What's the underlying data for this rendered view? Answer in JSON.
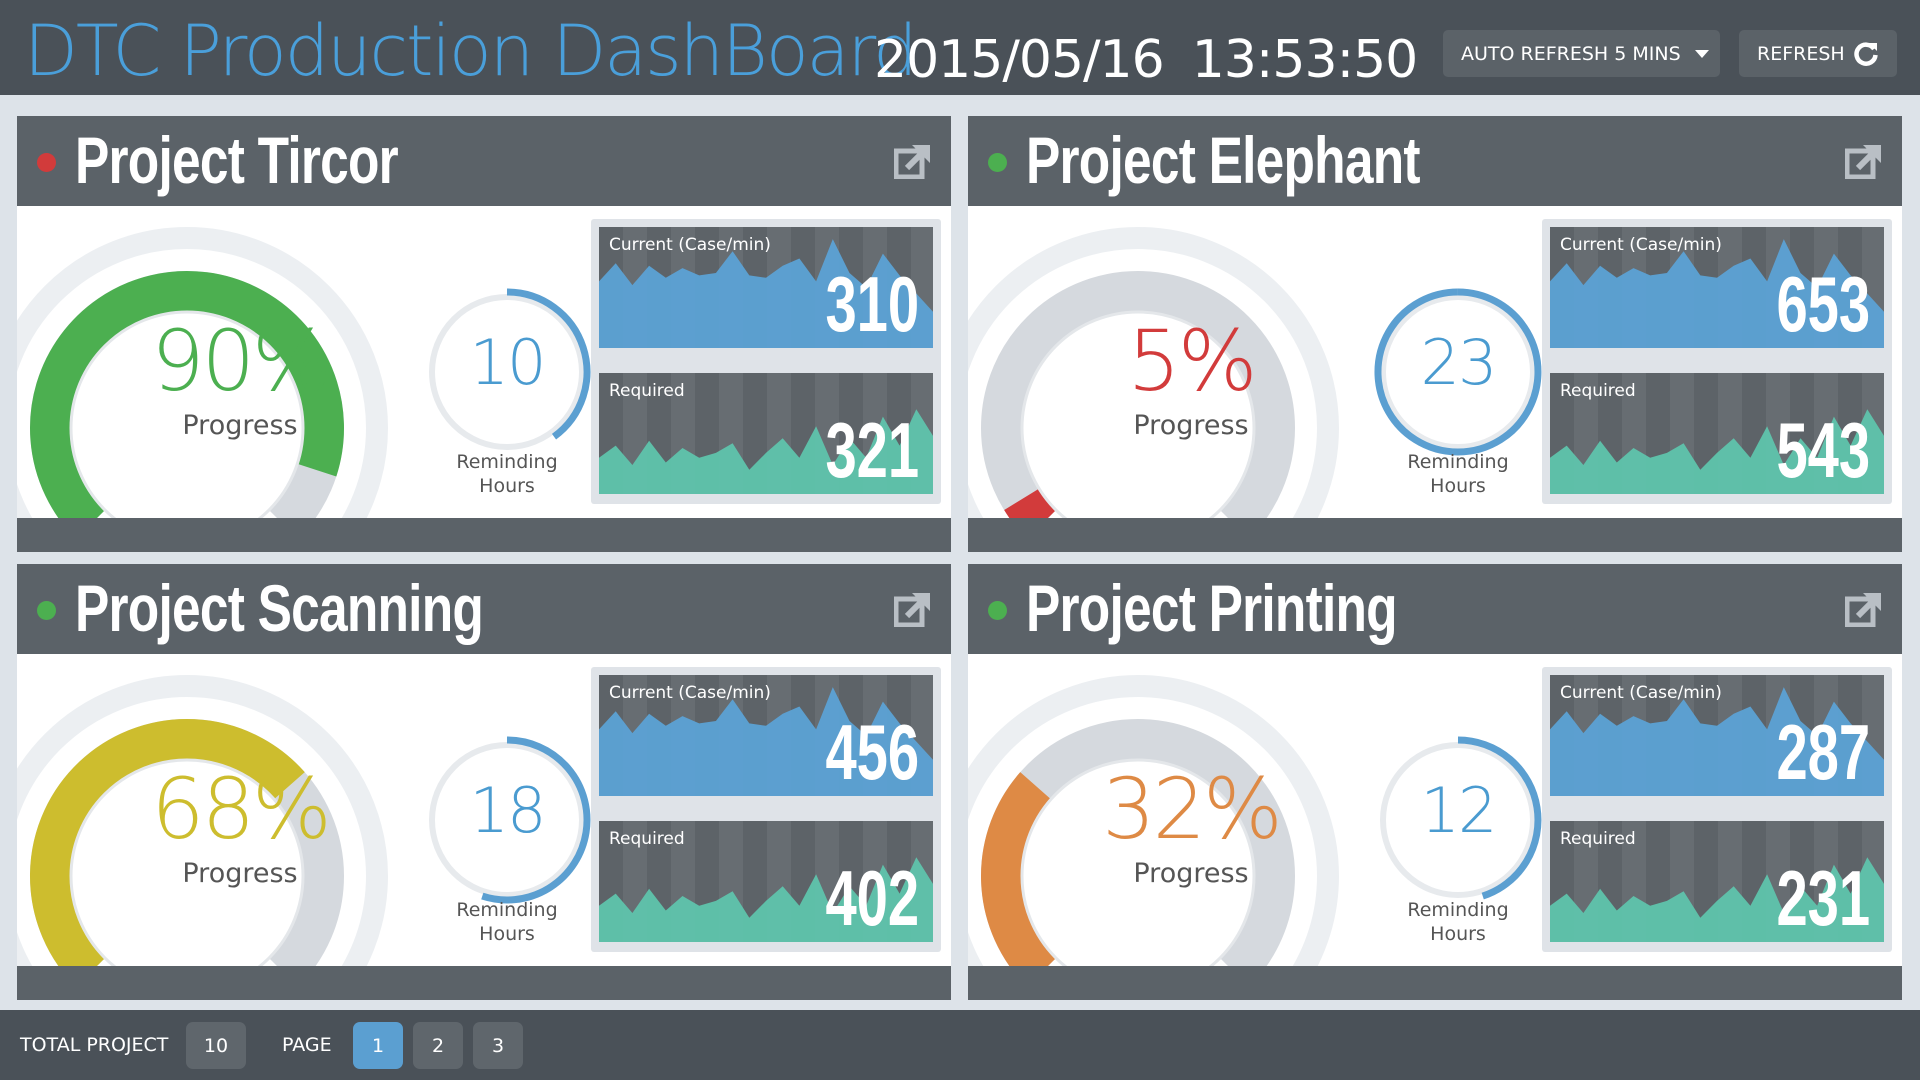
{
  "header": {
    "title": "DTC Production DashBoard",
    "date": "2015/05/16",
    "time": "13:53:50",
    "auto_refresh_label": "AUTO REFRESH 5 MINS",
    "refresh_label": "REFRESH"
  },
  "labels": {
    "progress": "Progress",
    "reminding_line1": "Reminding",
    "reminding_line2": "Hours",
    "current": "Current (Case/min)",
    "required": "Required"
  },
  "colors": {
    "accent_blue": "#4a9fda",
    "status_red": "#d23b3b",
    "status_green": "#4caf50",
    "current_fill": "#5ba4d8",
    "required_fill": "#5ec7ae"
  },
  "projects": [
    {
      "name": "Project Tircor",
      "status_color": "#d23b3b",
      "progress": 90,
      "progress_text": "90%",
      "progress_color": "#4caf50",
      "remaining_hours": "10",
      "hours_fraction": 0.4,
      "current_value": "310",
      "required_value": "321",
      "current_series": [
        55,
        70,
        52,
        68,
        58,
        66,
        60,
        62,
        80,
        60,
        58,
        68,
        74,
        55,
        90,
        62,
        50,
        78,
        60,
        45,
        30
      ],
      "required_series": [
        30,
        40,
        24,
        44,
        26,
        38,
        30,
        34,
        42,
        20,
        34,
        46,
        30,
        56,
        24,
        46,
        30,
        64,
        40,
        70,
        48
      ]
    },
    {
      "name": "Project Elephant",
      "status_color": "#4caf50",
      "progress": 5,
      "progress_text": "5%",
      "progress_color": "#d23b3b",
      "remaining_hours": "23",
      "hours_fraction": 1.0,
      "current_value": "653",
      "required_value": "543",
      "current_series": [
        55,
        70,
        52,
        68,
        58,
        66,
        60,
        62,
        80,
        60,
        58,
        68,
        74,
        55,
        90,
        62,
        50,
        78,
        60,
        45,
        30
      ],
      "required_series": [
        30,
        40,
        24,
        44,
        26,
        38,
        30,
        34,
        42,
        20,
        34,
        46,
        30,
        56,
        24,
        46,
        30,
        64,
        40,
        70,
        48
      ]
    },
    {
      "name": "Project Scanning",
      "status_color": "#4caf50",
      "progress": 68,
      "progress_text": "68%",
      "progress_color": "#cdbd2e",
      "remaining_hours": "18",
      "hours_fraction": 0.55,
      "current_value": "456",
      "required_value": "402",
      "current_series": [
        55,
        70,
        52,
        68,
        58,
        66,
        60,
        62,
        80,
        60,
        58,
        68,
        74,
        55,
        90,
        62,
        50,
        78,
        60,
        45,
        30
      ],
      "required_series": [
        30,
        40,
        24,
        44,
        26,
        38,
        30,
        34,
        42,
        20,
        34,
        46,
        30,
        56,
        24,
        46,
        30,
        64,
        40,
        70,
        48
      ]
    },
    {
      "name": "Project Printing",
      "status_color": "#4caf50",
      "progress": 32,
      "progress_text": "32%",
      "progress_color": "#de8a45",
      "remaining_hours": "12",
      "hours_fraction": 0.45,
      "current_value": "287",
      "required_value": "231",
      "current_series": [
        55,
        70,
        52,
        68,
        58,
        66,
        60,
        62,
        80,
        60,
        58,
        68,
        74,
        55,
        90,
        62,
        50,
        78,
        60,
        45,
        30
      ],
      "required_series": [
        30,
        40,
        24,
        44,
        26,
        38,
        30,
        34,
        42,
        20,
        34,
        46,
        30,
        56,
        24,
        46,
        30,
        64,
        40,
        70,
        48
      ]
    }
  ],
  "footer": {
    "total_label": "TOTAL PROJECT",
    "total_value": "10",
    "page_label": "PAGE",
    "pages": [
      "1",
      "2",
      "3"
    ],
    "active_page": "1"
  }
}
